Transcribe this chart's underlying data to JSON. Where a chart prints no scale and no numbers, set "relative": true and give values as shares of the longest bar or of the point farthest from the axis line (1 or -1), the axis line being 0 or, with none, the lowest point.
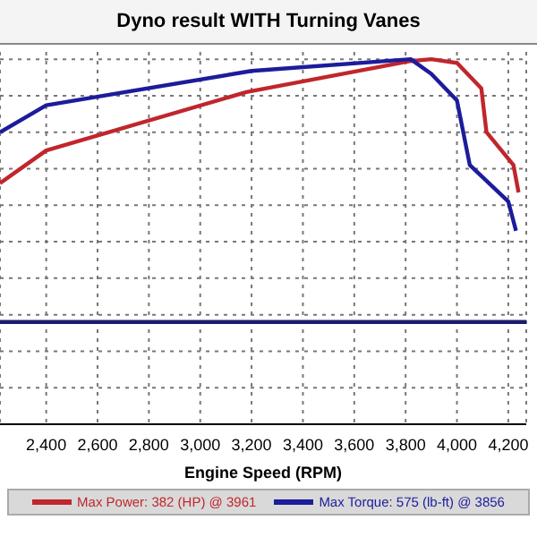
{
  "chart_data": {
    "type": "line",
    "title": "Dyno result WITH Turning Vanes",
    "xlabel": "Engine Speed (RPM)",
    "relative": true,
    "xlim": [
      2220,
      4270
    ],
    "xticks": [
      {
        "value": 2400,
        "label": "2,400"
      },
      {
        "value": 2600,
        "label": "2,600"
      },
      {
        "value": 2800,
        "label": "2,800"
      },
      {
        "value": 3000,
        "label": "3,000"
      },
      {
        "value": 3200,
        "label": "3,200"
      },
      {
        "value": 3400,
        "label": "3,400"
      },
      {
        "value": 3600,
        "label": "3,600"
      },
      {
        "value": 3800,
        "label": "3,800"
      },
      {
        "value": 4000,
        "label": "4,000"
      },
      {
        "value": 4200,
        "label": "4,200"
      }
    ],
    "grid": true,
    "legend": "bottom",
    "marker": "none",
    "line_style": "solid",
    "series": [
      {
        "name": "Max Power: 382 (HP) @ 3961",
        "color": "#c0262b",
        "x": [
          2220,
          2400,
          3180,
          3820,
          3900,
          4000,
          4095,
          4115,
          4220,
          4240
        ],
        "values": [
          0.66,
          0.75,
          0.91,
          0.995,
          1.0,
          0.99,
          0.92,
          0.8,
          0.71,
          0.635
        ]
      },
      {
        "name": "Max Torque: 575 (lb-ft) @ 3856",
        "color": "#1c1c9c",
        "x": [
          2220,
          2400,
          3200,
          3820,
          3900,
          4000,
          4050,
          4200,
          4230
        ],
        "values": [
          0.8,
          0.874,
          0.968,
          1.0,
          0.96,
          0.887,
          0.71,
          0.61,
          0.53
        ]
      },
      {
        "color": "#1c1c6c",
        "x": [
          2220,
          4270
        ],
        "values": [
          0.28,
          0.28
        ]
      }
    ]
  }
}
